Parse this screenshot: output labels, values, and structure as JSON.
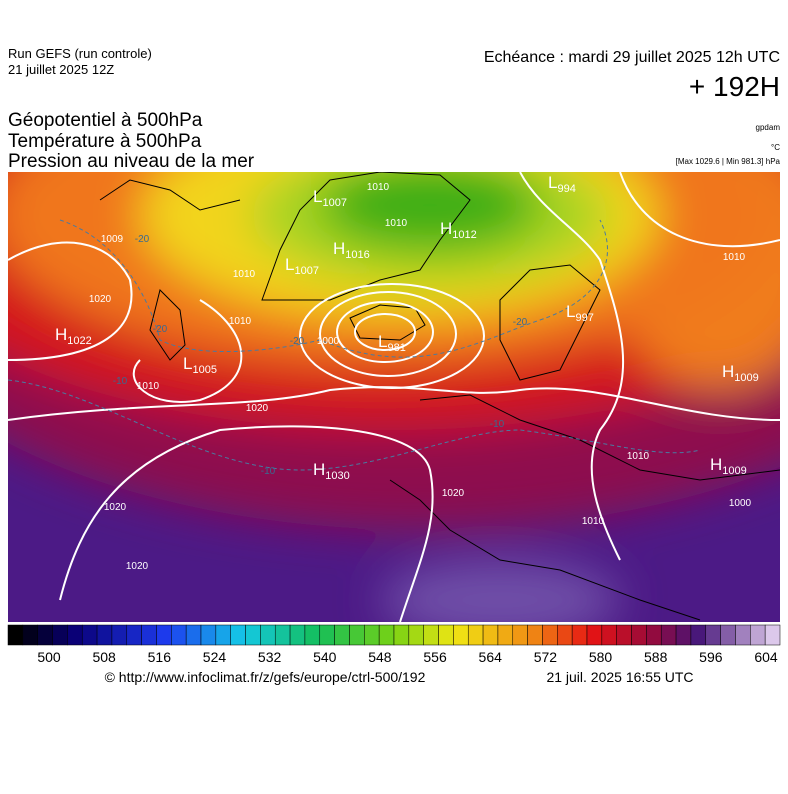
{
  "header": {
    "run": "Run GEFS (run controle)",
    "run_date": "21 juillet 2025 12Z",
    "valid": "Echéance : mardi 29 juillet 2025 12h UTC",
    "lead": "+ 192H"
  },
  "titles": [
    "Géopotentiel à 500hPa",
    "Température à 500hPa",
    "Pression au niveau de la mer"
  ],
  "units": {
    "geopotential": "gpdam",
    "temperature": "°C",
    "pressure": "[Max 1029.6 | Min 981.3] hPa"
  },
  "map": {
    "centers": [
      {
        "kind": "H",
        "value": 1022
      },
      {
        "kind": "L",
        "value": 1005
      },
      {
        "kind": "L",
        "value": 1007
      },
      {
        "kind": "H",
        "value": 1016
      },
      {
        "kind": "L",
        "value": 1007
      },
      {
        "kind": "H",
        "value": 1012
      },
      {
        "kind": "L",
        "value": 994
      },
      {
        "kind": "L",
        "value": 981
      },
      {
        "kind": "H",
        "value": 1030
      },
      {
        "kind": "H",
        "value": 1009
      },
      {
        "kind": "H",
        "value": 1009
      },
      {
        "kind": "L",
        "value": 997
      }
    ],
    "isobar_labels": [
      1010,
      1010,
      1009,
      1020,
      1010,
      1010,
      1000,
      1010,
      1020,
      1020,
      1020,
      1020,
      1010,
      1010,
      1010,
      1000
    ],
    "temperature_labels": [
      -20,
      -20,
      -20,
      -20,
      -10,
      -10,
      -10
    ]
  },
  "colorbar": {
    "ticks": [
      500,
      508,
      516,
      524,
      532,
      540,
      548,
      556,
      564,
      572,
      580,
      588,
      596,
      604
    ]
  },
  "footer": {
    "source": "© http://www.infoclimat.fr/z/gefs/europe/ctrl-500/192",
    "generated": "21 juil. 2025 16:55 UTC"
  }
}
